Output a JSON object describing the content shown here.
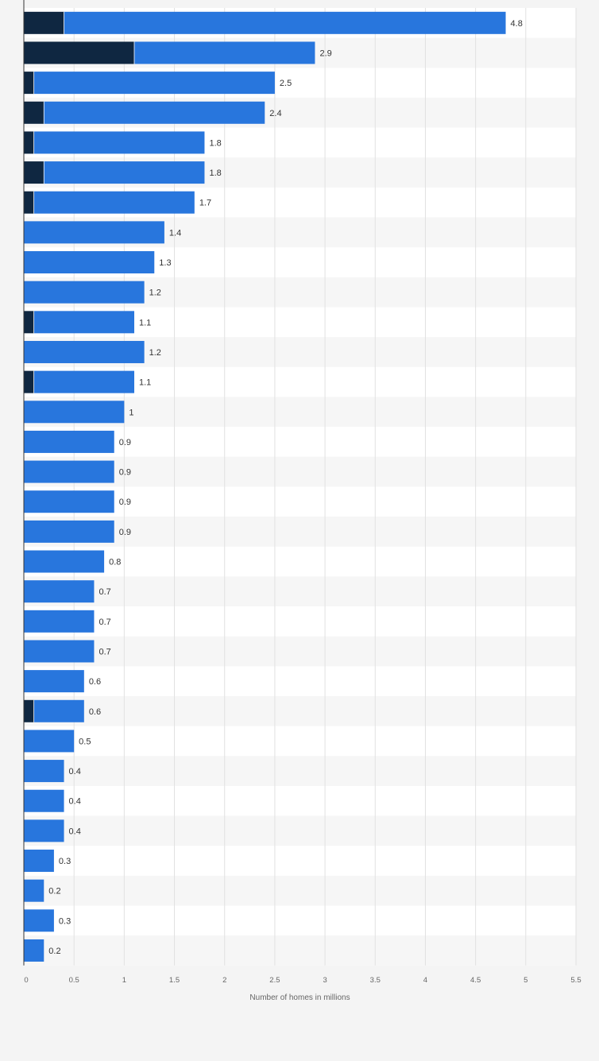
{
  "chart_data": {
    "type": "bar",
    "orientation": "horizontal",
    "stacked": true,
    "xlabel": "Number of homes in millions",
    "xlim": [
      0,
      5.5
    ],
    "xticks": [
      0,
      0.5,
      1,
      1.5,
      2,
      2.5,
      3,
      3.5,
      4,
      4.5,
      5,
      5.5
    ],
    "grid": true,
    "totals": [
      4.8,
      2.9,
      2.5,
      2.4,
      1.8,
      1.8,
      1.7,
      1.4,
      1.3,
      1.2,
      1.1,
      1.2,
      1.1,
      1,
      0.9,
      0.9,
      0.9,
      0.9,
      0.8,
      0.7,
      0.7,
      0.7,
      0.6,
      0.6,
      0.5,
      0.4,
      0.4,
      0.4,
      0.3,
      0.2,
      0.3,
      0.2
    ],
    "series": [
      {
        "color": "#0f2741",
        "values": [
          0.4,
          1.1,
          0.1,
          0.2,
          0.1,
          0.2,
          0.1,
          0,
          0,
          0,
          0.1,
          0,
          0.1,
          0,
          0,
          0,
          0,
          0,
          0,
          0,
          0,
          0,
          0,
          0.1,
          0,
          0,
          0,
          0,
          0,
          0,
          0,
          0
        ]
      },
      {
        "color": "#2876dd",
        "values": [
          4.4,
          1.8,
          2.4,
          2.2,
          1.7,
          1.6,
          1.6,
          1.4,
          1.3,
          1.2,
          1.0,
          1.2,
          1.0,
          1,
          0.9,
          0.9,
          0.9,
          0.9,
          0.8,
          0.7,
          0.7,
          0.7,
          0.6,
          0.5,
          0.5,
          0.4,
          0.4,
          0.4,
          0.3,
          0.2,
          0.3,
          0.2
        ]
      }
    ],
    "value_labels": [
      "4.8",
      "2.9",
      "2.5",
      "2.4",
      "1.8",
      "1.8",
      "1.7",
      "1.4",
      "1.3",
      "1.2",
      "1.1",
      "1.2",
      "1.1",
      "1",
      "0.9",
      "0.9",
      "0.9",
      "0.9",
      "0.8",
      "0.7",
      "0.7",
      "0.7",
      "0.6",
      "0.6",
      "0.5",
      "0.4",
      "0.4",
      "0.4",
      "0.3",
      "0.2",
      "0.3",
      "0.2"
    ],
    "tick_labels": [
      "0",
      "0.5",
      "1",
      "1.5",
      "2",
      "2.5",
      "3",
      "3.5",
      "4",
      "4.5",
      "5",
      "5.5"
    ]
  }
}
